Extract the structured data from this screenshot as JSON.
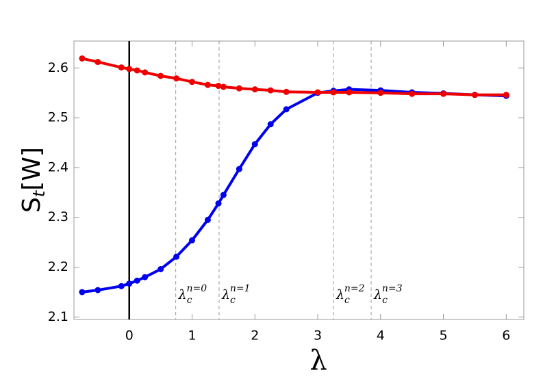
{
  "chart_data": {
    "type": "line",
    "xlabel": "λ",
    "ylabel": {
      "main": "S",
      "sub": "t",
      "rest": "[W]"
    },
    "xlim": [
      -0.88,
      6.28
    ],
    "ylim": [
      2.095,
      2.654
    ],
    "xticks": [
      0,
      1,
      2,
      3,
      4,
      5,
      6
    ],
    "yticks": [
      2.1,
      2.2,
      2.3,
      2.4,
      2.5,
      2.6
    ],
    "reference_line": {
      "x": 0,
      "color": "#000000"
    },
    "annotations": [
      {
        "x": 0.74,
        "label": "λ",
        "sub": "c",
        "sup": "n=0"
      },
      {
        "x": 1.43,
        "label": "λ",
        "sub": "c",
        "sup": "n=1"
      },
      {
        "x": 3.25,
        "label": "λ",
        "sub": "c",
        "sup": "n=2"
      },
      {
        "x": 3.85,
        "label": "λ",
        "sub": "c",
        "sup": "n=3"
      }
    ],
    "series": [
      {
        "color": "#0000ee",
        "x": [
          -0.75,
          -0.5,
          -0.125,
          0,
          0.125,
          0.25,
          0.5,
          0.75,
          1,
          1.25,
          1.42,
          1.5,
          1.75,
          2,
          2.25,
          2.5,
          3,
          3.25,
          3.5,
          4,
          4.5,
          5,
          5.5,
          6
        ],
        "values": [
          2.15,
          2.154,
          2.162,
          2.167,
          2.173,
          2.18,
          2.196,
          2.221,
          2.254,
          2.295,
          2.328,
          2.345,
          2.397,
          2.447,
          2.487,
          2.517,
          2.55,
          2.554,
          2.557,
          2.555,
          2.551,
          2.549,
          2.546,
          2.544
        ]
      },
      {
        "color": "#ee0000",
        "x": [
          -0.75,
          -0.5,
          -0.125,
          0,
          0.125,
          0.25,
          0.5,
          0.75,
          1,
          1.25,
          1.42,
          1.5,
          1.75,
          2,
          2.25,
          2.5,
          3,
          3.25,
          3.5,
          4,
          4.5,
          5,
          5.5,
          6
        ],
        "values": [
          2.619,
          2.612,
          2.601,
          2.598,
          2.595,
          2.591,
          2.584,
          2.579,
          2.572,
          2.566,
          2.564,
          2.562,
          2.559,
          2.557,
          2.555,
          2.552,
          2.551,
          2.551,
          2.551,
          2.55,
          2.548,
          2.548,
          2.546,
          2.546
        ]
      }
    ]
  }
}
